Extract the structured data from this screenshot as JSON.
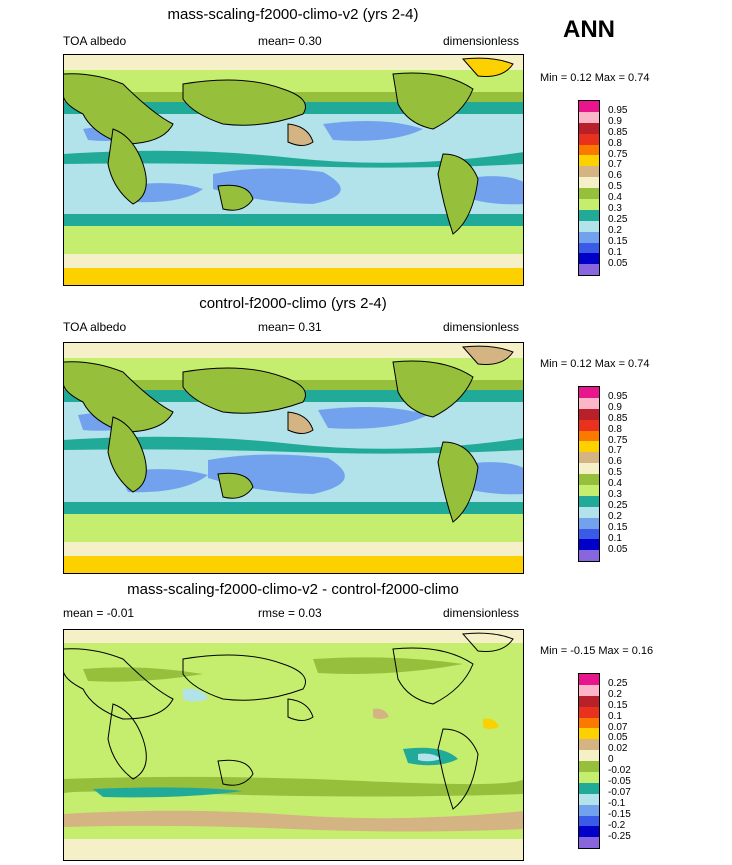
{
  "season": "ANN",
  "panels": [
    {
      "title": "mass-scaling-f2000-climo-v2 (yrs 2-4)",
      "left": "TOA albedo",
      "center": "mean=   0.30",
      "right": "dimensionless",
      "minmax": "Min =   0.12 Max =   0.74",
      "levels": [
        "0.95",
        "0.9",
        "0.85",
        "0.8",
        "0.75",
        "0.7",
        "0.6",
        "0.5",
        "0.4",
        "0.3",
        "0.25",
        "0.2",
        "0.15",
        "0.1",
        "0.05"
      ],
      "colors": [
        "#e8168c",
        "#fcb6c8",
        "#b8202a",
        "#e8321e",
        "#fa7a00",
        "#fdd000",
        "#d4b483",
        "#f5f0c8",
        "#96bf3c",
        "#c5ed6e",
        "#22aa98",
        "#b2e2ea",
        "#72a2ee",
        "#3a5ae8",
        "#0000c8",
        "#8866dd"
      ]
    },
    {
      "title": "control-f2000-climo (yrs 2-4)",
      "left": "TOA albedo",
      "center": "mean=   0.31",
      "right": "dimensionless",
      "minmax": "Min =   0.12 Max =   0.74",
      "levels": [
        "0.95",
        "0.9",
        "0.85",
        "0.8",
        "0.75",
        "0.7",
        "0.6",
        "0.5",
        "0.4",
        "0.3",
        "0.25",
        "0.2",
        "0.15",
        "0.1",
        "0.05"
      ],
      "colors": [
        "#e8168c",
        "#fcb6c8",
        "#b8202a",
        "#e8321e",
        "#fa7a00",
        "#fdd000",
        "#d4b483",
        "#f5f0c8",
        "#96bf3c",
        "#c5ed6e",
        "#22aa98",
        "#b2e2ea",
        "#72a2ee",
        "#3a5ae8",
        "#0000c8",
        "#8866dd"
      ]
    },
    {
      "title": "mass-scaling-f2000-climo-v2 - control-f2000-climo",
      "left": "mean =  -0.01",
      "center": "rmse =   0.03",
      "right": "dimensionless",
      "minmax": "Min =  -0.15 Max =   0.16",
      "levels": [
        "0.25",
        "0.2",
        "0.15",
        "0.1",
        "0.07",
        "0.05",
        "0.02",
        "0",
        "-0.02",
        "-0.05",
        "-0.07",
        "-0.1",
        "-0.15",
        "-0.2",
        "-0.25"
      ],
      "colors": [
        "#e8168c",
        "#fcb6c8",
        "#b8202a",
        "#e8321e",
        "#fa7a00",
        "#fdd000",
        "#d4b483",
        "#f5f0c8",
        "#96bf3c",
        "#c5ed6e",
        "#22aa98",
        "#b2e2ea",
        "#72a2ee",
        "#3a5ae8",
        "#0000c8",
        "#8866dd"
      ]
    }
  ],
  "chart_data": [
    {
      "type": "heatmap",
      "title": "mass-scaling-f2000-climo-v2 (yrs 2-4)",
      "variable": "TOA albedo",
      "units": "dimensionless",
      "mean": 0.3,
      "min": 0.12,
      "max": 0.74,
      "contour_levels": [
        0.05,
        0.1,
        0.15,
        0.2,
        0.25,
        0.3,
        0.4,
        0.5,
        0.6,
        0.7,
        0.75,
        0.8,
        0.85,
        0.9,
        0.95
      ]
    },
    {
      "type": "heatmap",
      "title": "control-f2000-climo (yrs 2-4)",
      "variable": "TOA albedo",
      "units": "dimensionless",
      "mean": 0.31,
      "min": 0.12,
      "max": 0.74,
      "contour_levels": [
        0.05,
        0.1,
        0.15,
        0.2,
        0.25,
        0.3,
        0.4,
        0.5,
        0.6,
        0.7,
        0.75,
        0.8,
        0.85,
        0.9,
        0.95
      ]
    },
    {
      "type": "heatmap",
      "title": "mass-scaling-f2000-climo-v2 - control-f2000-climo",
      "units": "dimensionless",
      "mean": -0.01,
      "rmse": 0.03,
      "min": -0.15,
      "max": 0.16,
      "contour_levels": [
        -0.25,
        -0.2,
        -0.15,
        -0.1,
        -0.07,
        -0.05,
        -0.02,
        0,
        0.02,
        0.05,
        0.07,
        0.1,
        0.15,
        0.2,
        0.25
      ]
    }
  ]
}
